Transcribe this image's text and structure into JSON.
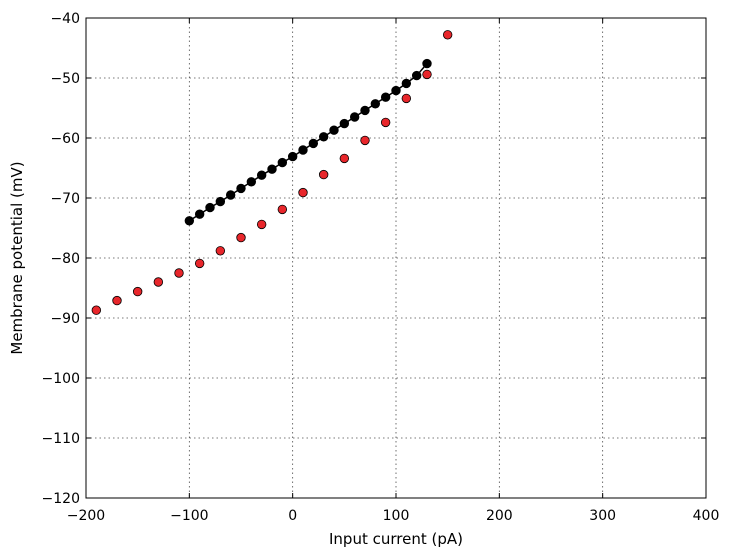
{
  "chart_data": {
    "type": "scatter",
    "title": "",
    "xlabel": "Input current (pA)",
    "ylabel": "Membrane potential (mV)",
    "xlim": [
      -200,
      400
    ],
    "ylim": [
      -120,
      -40
    ],
    "xticks": [
      -200,
      -100,
      0,
      100,
      200,
      300,
      400
    ],
    "yticks": [
      -120,
      -110,
      -100,
      -90,
      -80,
      -70,
      -60,
      -50,
      -40
    ],
    "xtick_labels": [
      "−200",
      "−100",
      "0",
      "100",
      "200",
      "300",
      "400"
    ],
    "ytick_labels": [
      "−120",
      "−110",
      "−100",
      "−90",
      "−80",
      "−70",
      "−60",
      "−50",
      "−40"
    ],
    "grid": true,
    "series": [
      {
        "color": "#000000",
        "connected": true,
        "x": [
          -100,
          -90,
          -80,
          -70,
          -60,
          -50,
          -40,
          -30,
          -20,
          -10,
          0,
          10,
          20,
          30,
          40,
          50,
          60,
          70,
          80,
          90,
          100,
          110,
          120,
          130
        ],
        "y": [
          -73.8,
          -72.7,
          -71.6,
          -70.6,
          -69.5,
          -68.4,
          -67.3,
          -66.2,
          -65.2,
          -64.1,
          -63.1,
          -62.0,
          -60.9,
          -59.8,
          -58.7,
          -57.6,
          -56.5,
          -55.4,
          -54.3,
          -53.2,
          -52.1,
          -50.9,
          -49.6,
          -47.6
        ]
      },
      {
        "color": "#e8262b",
        "connected": false,
        "x": [
          -190,
          -170,
          -150,
          -130,
          -110,
          -90,
          -70,
          -50,
          -30,
          -10,
          10,
          30,
          50,
          70,
          90,
          110,
          130,
          150
        ],
        "y": [
          -88.7,
          -87.1,
          -85.6,
          -84.0,
          -82.5,
          -80.9,
          -78.8,
          -76.6,
          -74.4,
          -71.9,
          -69.1,
          -66.1,
          -63.4,
          -60.4,
          -57.4,
          -53.4,
          -49.4,
          -42.8
        ]
      }
    ]
  }
}
